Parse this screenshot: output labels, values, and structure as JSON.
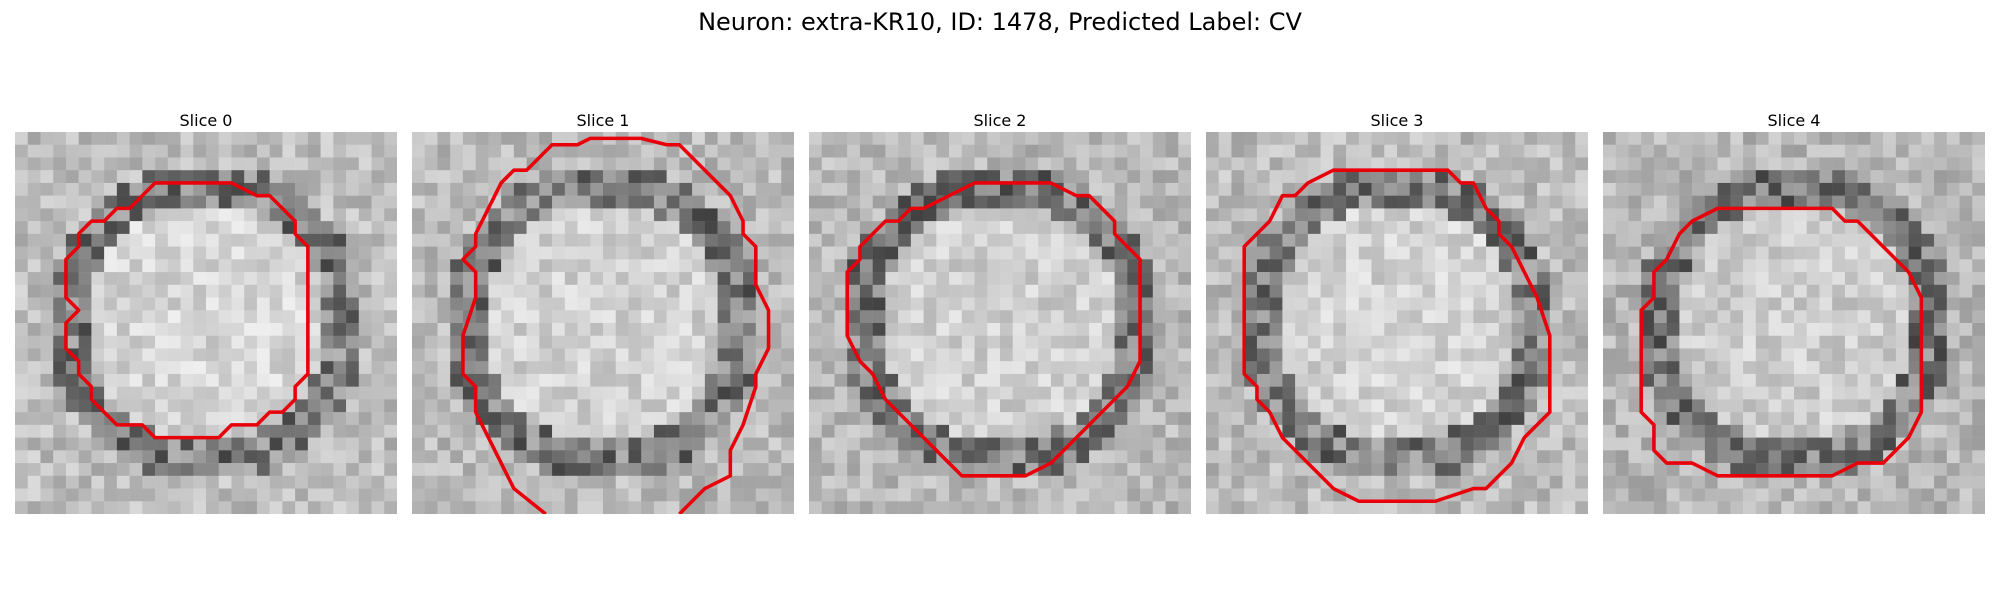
{
  "figure": {
    "title": "Neuron: extra-KR10, ID: 1478, Predicted Label: CV"
  },
  "panels": [
    {
      "title": "Slice 0",
      "seed": 11,
      "tone": 0.55
    },
    {
      "title": "Slice 1",
      "seed": 23,
      "tone": 0.5
    },
    {
      "title": "Slice 2",
      "seed": 37,
      "tone": 0.48
    },
    {
      "title": "Slice 3",
      "seed": 41,
      "tone": 0.52
    },
    {
      "title": "Slice 4",
      "seed": 53,
      "tone": 0.45
    }
  ],
  "colors": {
    "contour": "#e8000b"
  }
}
